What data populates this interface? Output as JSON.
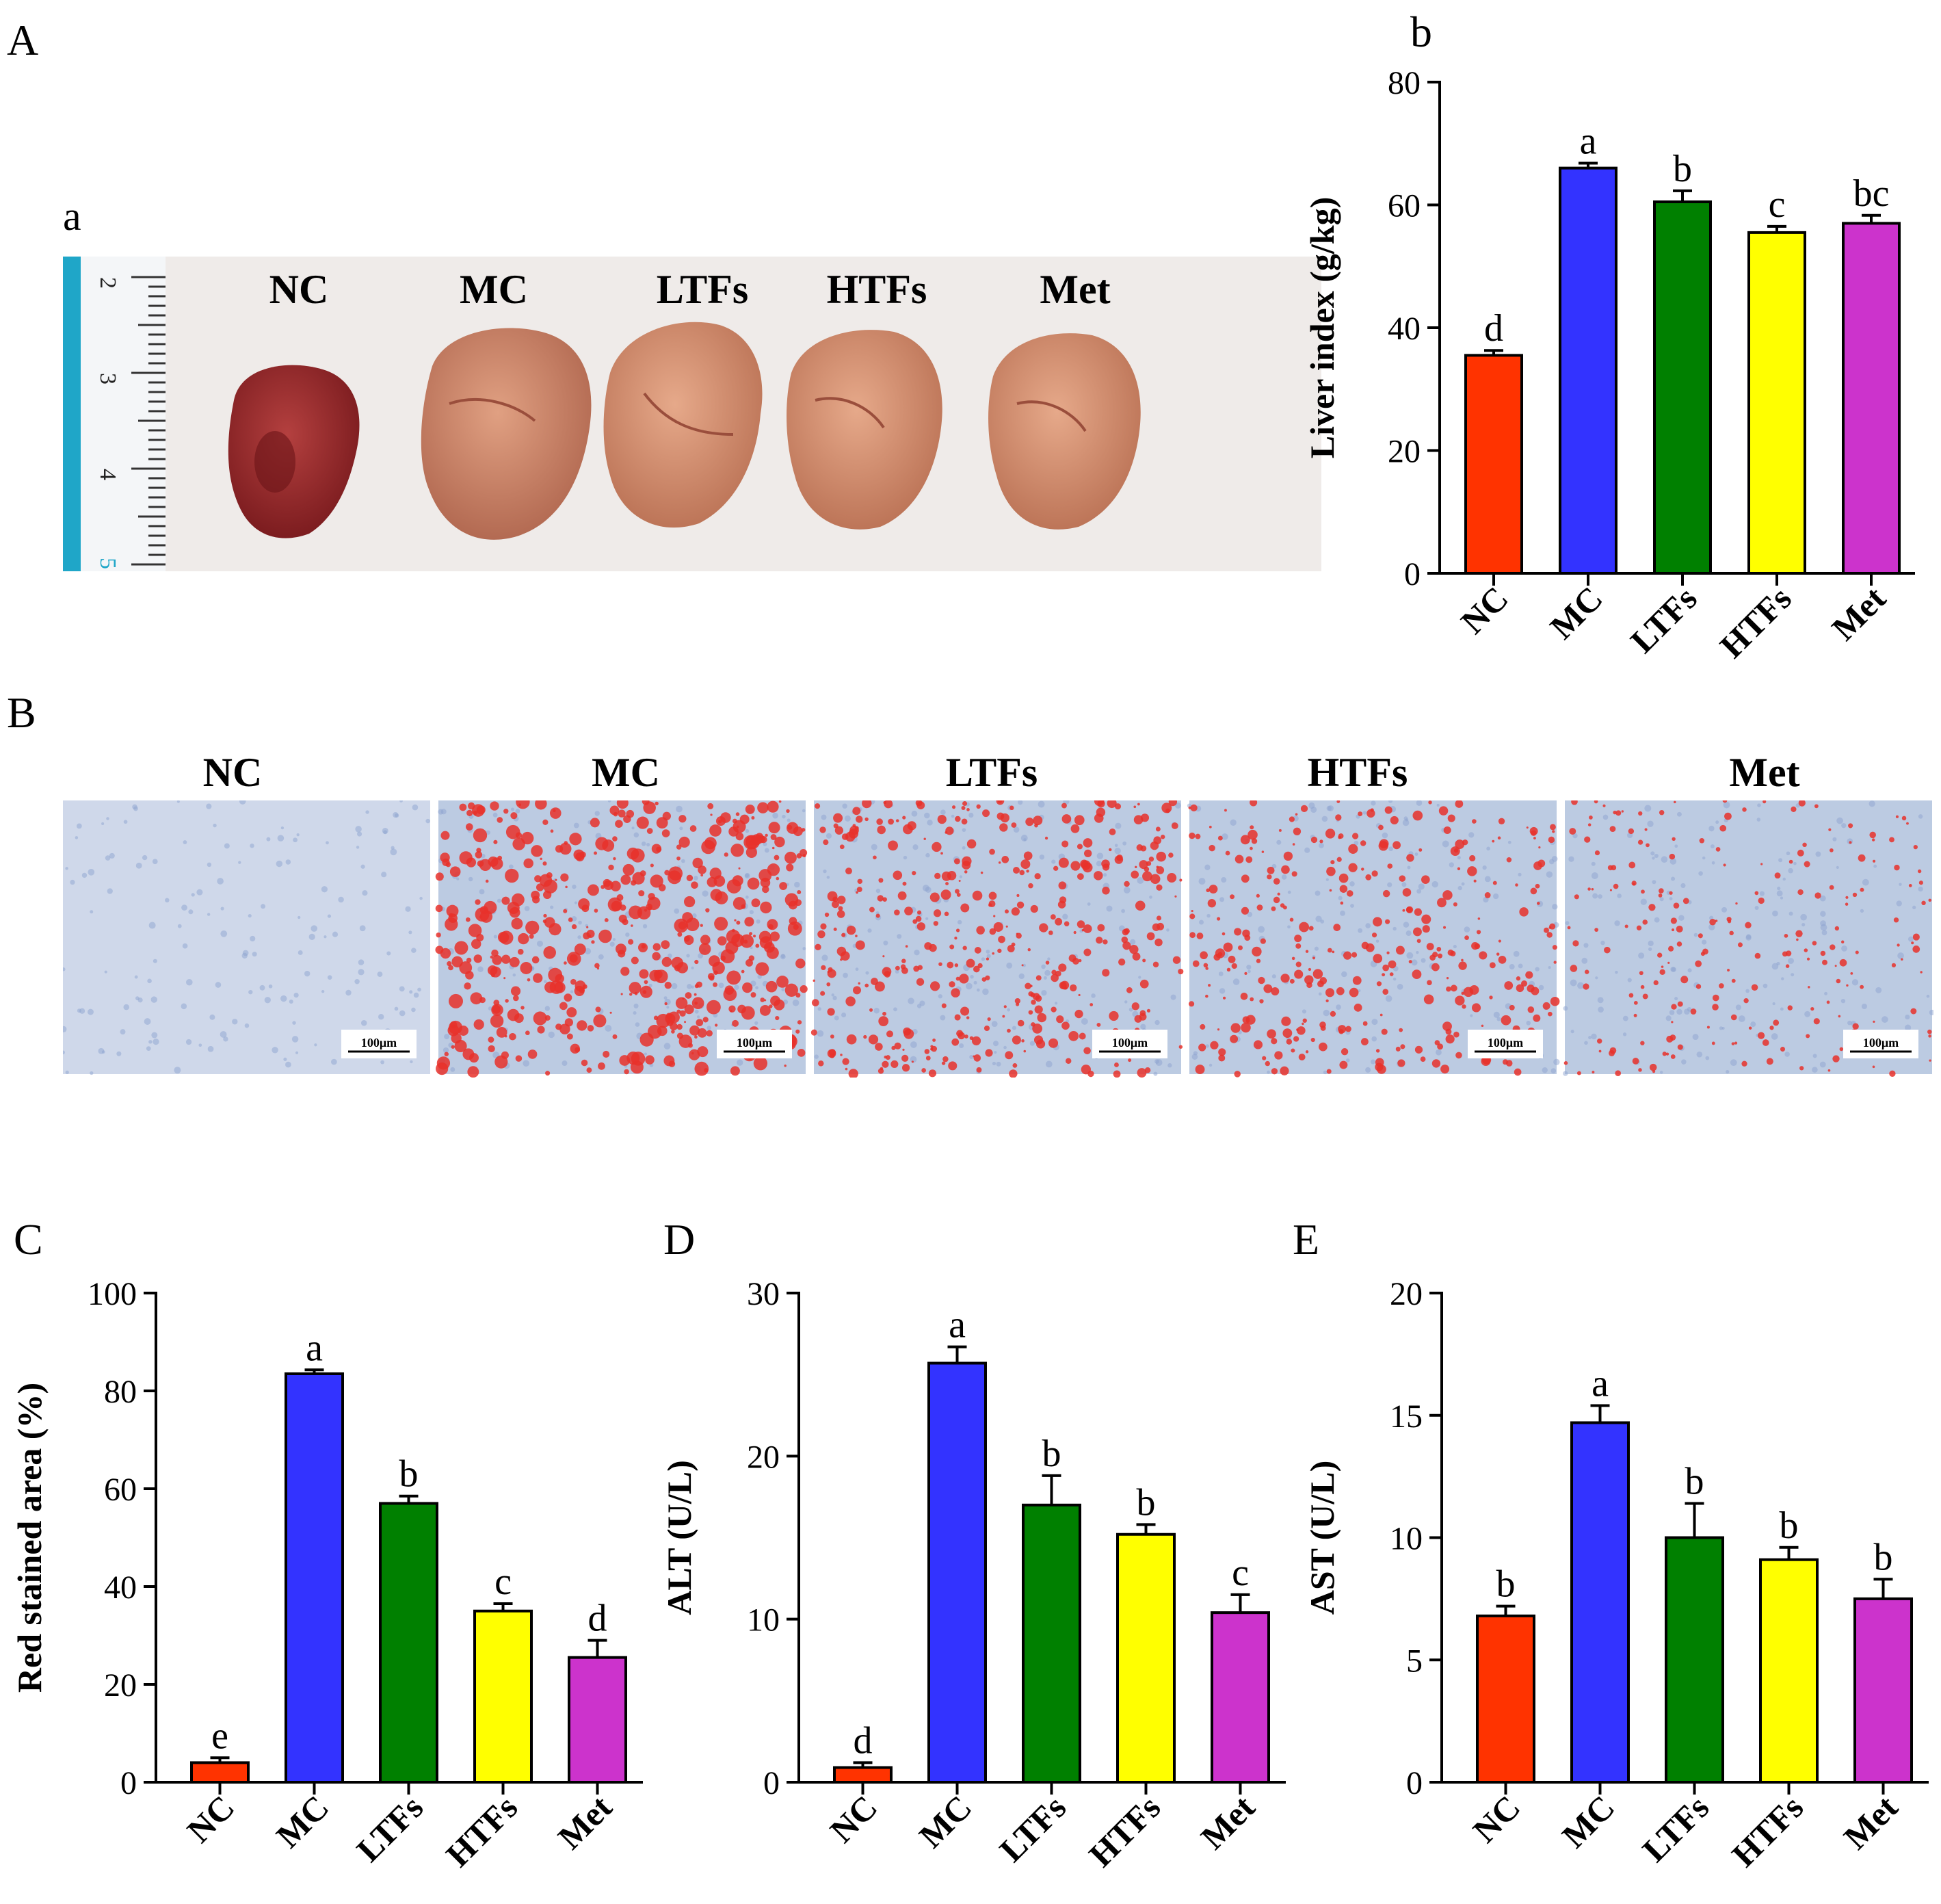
{
  "panel_letters": {
    "A": "A",
    "a": "a",
    "b": "b",
    "B": "B",
    "C": "C",
    "D": "D",
    "E": "E"
  },
  "groups": [
    "NC",
    "MC",
    "LTFs",
    "HTFs",
    "Met"
  ],
  "colors": {
    "NC": "#ff3300",
    "MC": "#3333ff",
    "LTFs": "#008000",
    "HTFs": "#ffff00",
    "Met": "#cc33cc"
  },
  "photo_a": {
    "labels": [
      "NC",
      "MC",
      "LTFs",
      "HTFs",
      "Met"
    ],
    "ruler_numbers": [
      "2",
      "3",
      "4",
      "5"
    ]
  },
  "histology": {
    "titles": [
      "NC",
      "MC",
      "LTFs",
      "HTFs",
      "Met"
    ],
    "scale_bar": "100μm"
  },
  "chart_data": [
    {
      "panel": "b",
      "type": "bar",
      "categories": [
        "NC",
        "MC",
        "LTFs",
        "HTFs",
        "Met"
      ],
      "values": [
        35.5,
        66,
        60.5,
        55.5,
        57
      ],
      "errors": [
        0.8,
        0.8,
        1.8,
        1.0,
        1.3
      ],
      "letters": [
        "d",
        "a",
        "b",
        "c",
        "bc"
      ],
      "ylabel": "Liver index (g/kg)",
      "ylim": [
        0,
        80
      ],
      "yticks": [
        0,
        20,
        40,
        60,
        80
      ]
    },
    {
      "panel": "C",
      "type": "bar",
      "categories": [
        "NC",
        "MC",
        "LTFs",
        "HTFs",
        "Met"
      ],
      "values": [
        4,
        83.5,
        57,
        35,
        25.5
      ],
      "errors": [
        1.0,
        0.8,
        1.5,
        1.5,
        3.5
      ],
      "letters": [
        "e",
        "a",
        "b",
        "c",
        "d"
      ],
      "ylabel": "Red stained area (%)",
      "ylim": [
        0,
        100
      ],
      "yticks": [
        0,
        20,
        40,
        60,
        80,
        100
      ]
    },
    {
      "panel": "D",
      "type": "bar",
      "categories": [
        "NC",
        "MC",
        "LTFs",
        "HTFs",
        "Met"
      ],
      "values": [
        0.9,
        25.7,
        17.0,
        15.2,
        10.4
      ],
      "errors": [
        0.3,
        1.0,
        1.8,
        0.6,
        1.1
      ],
      "letters": [
        "d",
        "a",
        "b",
        "b",
        "c"
      ],
      "ylabel": "ALT (U/L)",
      "ylim": [
        0,
        30
      ],
      "yticks": [
        0,
        10,
        20,
        30
      ]
    },
    {
      "panel": "E",
      "type": "bar",
      "categories": [
        "NC",
        "MC",
        "LTFs",
        "HTFs",
        "Met"
      ],
      "values": [
        6.8,
        14.7,
        10.0,
        9.1,
        7.5
      ],
      "errors": [
        0.4,
        0.7,
        1.4,
        0.5,
        0.8
      ],
      "letters": [
        "b",
        "a",
        "b",
        "b",
        "b"
      ],
      "ylabel": "AST (U/L)",
      "ylim": [
        0,
        20
      ],
      "yticks": [
        0,
        5,
        10,
        15,
        20
      ]
    }
  ]
}
